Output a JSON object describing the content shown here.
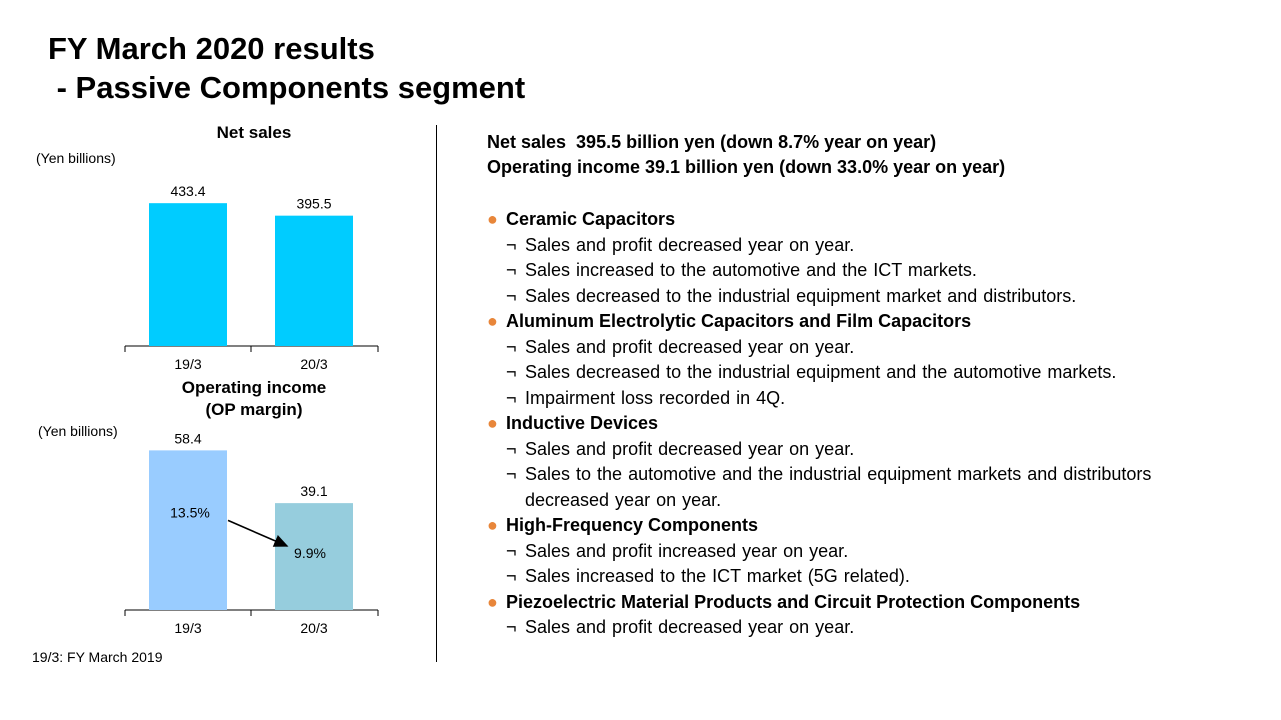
{
  "title": "FY March 2020 results\n - Passive Components segment",
  "net_sales_chart_title": "Net sales",
  "op_chart_title": "Operating income\n(OP margin)",
  "unit": "(Yen billions)",
  "footnote": "19/3: FY March 2019",
  "summary": {
    "line1": "Net sales  395.5 billion yen (down 8.7% year on year)",
    "line2": "Operating income 39.1 billion yen (down 33.0% year on year)"
  },
  "sections": [
    {
      "title": "Ceramic Capacitors",
      "points": [
        "Sales and profit decreased year on year.",
        "Sales increased to the automotive and the ICT markets.",
        "Sales decreased to the industrial equipment  market and distributors."
      ]
    },
    {
      "title": "Aluminum Electrolytic Capacitors and Film Capacitors",
      "points": [
        "Sales and profit decreased year on year.",
        "Sales decreased to the industrial equipment  and the automotive markets.",
        "Impairment  loss recorded in 4Q."
      ]
    },
    {
      "title": "Inductive Devices",
      "points": [
        "Sales and profit decreased year on year.",
        "Sales to the automotive and the industrial equipment  markets and distributors decreased year on year."
      ]
    },
    {
      "title": "High-Frequency Components",
      "points": [
        "Sales and profit increased year on year.",
        "Sales increased to the ICT market (5G related)."
      ]
    },
    {
      "title": "Piezoelectric Material Products and Circuit Protection Components",
      "points": [
        "Sales and profit decreased year on year."
      ]
    }
  ],
  "bullet_glyph": "●",
  "point_glyph": "¬",
  "chart_data": [
    {
      "type": "bar",
      "title": "Net sales",
      "ylabel": "(Yen billions)",
      "categories": [
        "19/3",
        "20/3"
      ],
      "values": [
        433.4,
        395.5
      ],
      "ylim": [
        0,
        440
      ],
      "color": "#00ccff"
    },
    {
      "type": "bar",
      "title": "Operating income\n(OP margin)",
      "ylabel": "(Yen billions)",
      "categories": [
        "19/3",
        "20/3"
      ],
      "values": [
        58.4,
        39.1
      ],
      "margins": [
        "13.5%",
        "9.9%"
      ],
      "ylim": [
        0,
        60
      ],
      "colors": [
        "#99ccff",
        "#96cddd"
      ]
    }
  ]
}
